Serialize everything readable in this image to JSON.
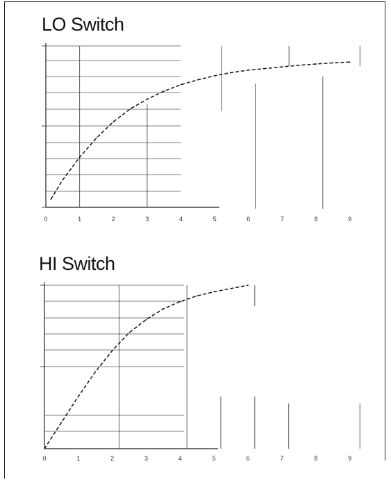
{
  "chart_data": [
    {
      "type": "line",
      "title": "LO Switch",
      "x_tick_labels": [
        "0",
        "1",
        "2",
        "3",
        "4",
        "5",
        "6",
        "7",
        "8",
        "9"
      ],
      "y_tick_labels": [
        "",
        "",
        ""
      ],
      "xlim": [
        0,
        9.5
      ],
      "ylim": [
        0,
        1
      ],
      "line_style": "dashed",
      "grid": "partial",
      "series": [
        {
          "x": [
            0.15,
            0.5,
            1.0,
            1.5,
            2.0,
            2.5,
            3.0,
            3.5,
            4.0,
            4.5,
            5.0,
            5.5,
            6.0,
            6.5,
            7.0,
            7.5,
            8.0,
            8.5,
            9.0
          ],
          "y": [
            0.05,
            0.17,
            0.31,
            0.43,
            0.53,
            0.61,
            0.67,
            0.72,
            0.76,
            0.79,
            0.815,
            0.835,
            0.85,
            0.86,
            0.87,
            0.88,
            0.888,
            0.895,
            0.9
          ]
        }
      ]
    },
    {
      "type": "line",
      "title": "HI Switch",
      "x_tick_labels": [
        "0",
        "1",
        "2",
        "3",
        "4",
        "5",
        "6",
        "7",
        "8",
        "9"
      ],
      "y_tick_labels": [
        "",
        ""
      ],
      "xlim": [
        0,
        9.5
      ],
      "ylim": [
        0,
        1
      ],
      "line_style": "dashed",
      "grid": "partial",
      "series": [
        {
          "x": [
            0,
            0.5,
            1.0,
            1.5,
            2.0,
            2.5,
            3.0,
            3.5,
            4.0,
            4.5,
            5.0,
            5.5,
            6.0
          ],
          "y": [
            0.0,
            0.16,
            0.32,
            0.47,
            0.6,
            0.71,
            0.79,
            0.855,
            0.9,
            0.935,
            0.96,
            0.98,
            1.0
          ]
        }
      ]
    }
  ]
}
